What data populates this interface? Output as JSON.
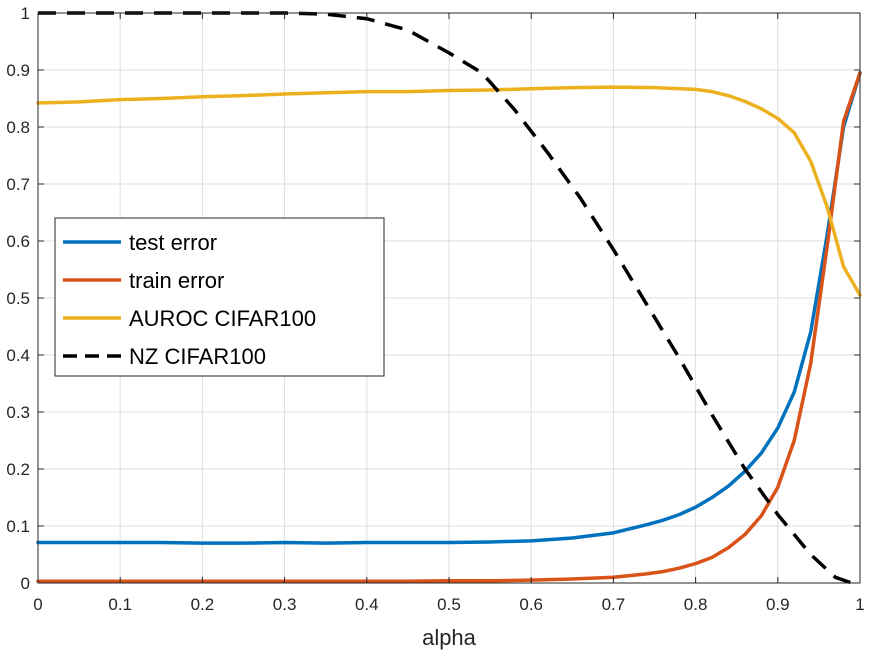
{
  "chart_data": {
    "type": "line",
    "title": "",
    "xlabel": "alpha",
    "ylabel": "",
    "xlim": [
      0,
      1
    ],
    "ylim": [
      0,
      1
    ],
    "xticks": [
      "0",
      "0.1",
      "0.2",
      "0.3",
      "0.4",
      "0.5",
      "0.6",
      "0.7",
      "0.8",
      "0.9",
      "1"
    ],
    "yticks": [
      "0",
      "0.1",
      "0.2",
      "0.3",
      "0.4",
      "0.5",
      "0.6",
      "0.7",
      "0.8",
      "0.9",
      "1"
    ],
    "grid": true,
    "legend_position": "middle-left",
    "series": [
      {
        "name": "test error",
        "color": "#0072BD",
        "dash": "solid",
        "x": [
          0,
          0.05,
          0.1,
          0.15,
          0.2,
          0.25,
          0.3,
          0.35,
          0.4,
          0.45,
          0.5,
          0.55,
          0.6,
          0.65,
          0.7,
          0.72,
          0.74,
          0.76,
          0.78,
          0.8,
          0.82,
          0.84,
          0.86,
          0.88,
          0.9,
          0.92,
          0.94,
          0.96,
          0.98,
          1.0
        ],
        "y": [
          0.071,
          0.071,
          0.071,
          0.071,
          0.07,
          0.07,
          0.071,
          0.07,
          0.071,
          0.071,
          0.071,
          0.072,
          0.074,
          0.079,
          0.088,
          0.095,
          0.102,
          0.11,
          0.12,
          0.133,
          0.15,
          0.17,
          0.196,
          0.228,
          0.272,
          0.335,
          0.44,
          0.61,
          0.8,
          0.895
        ]
      },
      {
        "name": "train error",
        "color": "#D95319",
        "dash": "solid",
        "x": [
          0,
          0.05,
          0.1,
          0.15,
          0.2,
          0.25,
          0.3,
          0.35,
          0.4,
          0.45,
          0.5,
          0.55,
          0.6,
          0.65,
          0.7,
          0.72,
          0.74,
          0.76,
          0.78,
          0.8,
          0.82,
          0.84,
          0.86,
          0.88,
          0.9,
          0.92,
          0.94,
          0.96,
          0.98,
          1.0
        ],
        "y": [
          0.003,
          0.003,
          0.003,
          0.003,
          0.003,
          0.003,
          0.003,
          0.003,
          0.003,
          0.003,
          0.004,
          0.004,
          0.005,
          0.007,
          0.01,
          0.013,
          0.016,
          0.02,
          0.026,
          0.034,
          0.045,
          0.062,
          0.085,
          0.118,
          0.168,
          0.25,
          0.385,
          0.59,
          0.81,
          0.895
        ]
      },
      {
        "name": "AUROC CIFAR100",
        "color": "#EDB120",
        "dash": "solid",
        "x": [
          0,
          0.05,
          0.1,
          0.15,
          0.2,
          0.25,
          0.3,
          0.35,
          0.4,
          0.45,
          0.5,
          0.55,
          0.6,
          0.65,
          0.7,
          0.75,
          0.8,
          0.82,
          0.84,
          0.86,
          0.88,
          0.9,
          0.92,
          0.94,
          0.96,
          0.98,
          1.0
        ],
        "y": [
          0.842,
          0.844,
          0.848,
          0.85,
          0.853,
          0.855,
          0.858,
          0.86,
          0.862,
          0.862,
          0.864,
          0.865,
          0.867,
          0.869,
          0.87,
          0.869,
          0.866,
          0.862,
          0.855,
          0.845,
          0.832,
          0.815,
          0.79,
          0.74,
          0.66,
          0.555,
          0.505
        ]
      },
      {
        "name": "NZ CIFAR100",
        "color": "#000000",
        "dash": "dashed",
        "x": [
          0,
          0.1,
          0.2,
          0.3,
          0.35,
          0.4,
          0.45,
          0.5,
          0.54,
          0.58,
          0.62,
          0.66,
          0.7,
          0.74,
          0.78,
          0.82,
          0.86,
          0.9,
          0.94,
          0.97,
          0.99,
          1.0
        ],
        "y": [
          1.0,
          1.0,
          1.0,
          1.0,
          0.998,
          0.99,
          0.97,
          0.93,
          0.895,
          0.83,
          0.755,
          0.675,
          0.585,
          0.49,
          0.395,
          0.295,
          0.2,
          0.12,
          0.05,
          0.01,
          0.0,
          0.0
        ]
      }
    ]
  }
}
